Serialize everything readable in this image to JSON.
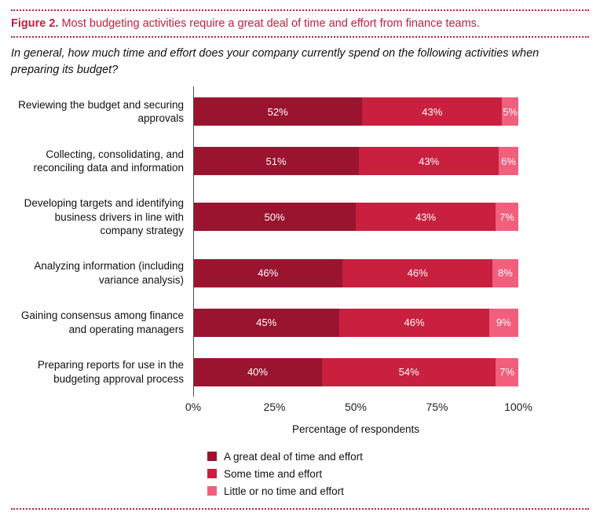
{
  "figure": {
    "label": "Figure 2.",
    "title": "Most budgeting activities require a great deal of time and effort from finance teams.",
    "subtitle": "In general, how much time and effort does your company currently spend on the following activities when preparing its budget?"
  },
  "colors": {
    "accent": "#c31e3e",
    "great_deal": "#9a142f",
    "some": "#c9203f",
    "little": "#f15f7d",
    "axis_line": "#4d4d4d"
  },
  "chart_data": {
    "type": "bar",
    "orientation": "horizontal",
    "stacked": true,
    "grid": false,
    "legend_position": "bottom",
    "categories": [
      "Reviewing the budget and securing approvals",
      "Collecting, consolidating, and reconciling data and information",
      "Developing targets and identifying business drivers in line with company strategy",
      "Analyzing information (including variance analysis)",
      "Gaining consensus among finance and operating managers",
      "Preparing reports for use in the budgeting approval process"
    ],
    "series": [
      {
        "name": "A great deal of time and effort",
        "color": "#9a142f",
        "values": [
          52,
          51,
          50,
          46,
          45,
          40
        ]
      },
      {
        "name": "Some time and effort",
        "color": "#c9203f",
        "values": [
          43,
          43,
          43,
          46,
          46,
          54
        ]
      },
      {
        "name": "Little or no time and effort",
        "color": "#f15f7d",
        "values": [
          5,
          6,
          7,
          8,
          9,
          7
        ]
      }
    ],
    "value_suffix": "%",
    "x_ticks": [
      "0%",
      "25%",
      "50%",
      "75%",
      "100%"
    ],
    "xlim": [
      0,
      100
    ],
    "xlabel": "Percentage of respondents"
  }
}
